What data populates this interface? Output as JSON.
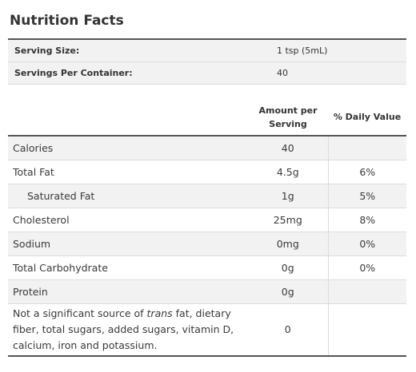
{
  "title": "Nutrition Facts",
  "serving": [
    {
      "label": "Serving Size:",
      "value": "1 tsp (5mL)"
    },
    {
      "label": "Servings Per Container:",
      "value": "40"
    }
  ],
  "headers": {
    "amount_line1": "Amount per",
    "amount_line2": "Serving",
    "daily_value": "% Daily Value"
  },
  "nutrients": [
    {
      "name": "Calories",
      "amount": "40",
      "dv": ""
    },
    {
      "name": "Total Fat",
      "amount": "4.5g",
      "dv": "6%"
    },
    {
      "name": "Saturated Fat",
      "amount": "1g",
      "dv": "5%"
    },
    {
      "name": "Cholesterol",
      "amount": "25mg",
      "dv": "8%"
    },
    {
      "name": "Sodium",
      "amount": "0mg",
      "dv": "0%"
    },
    {
      "name": "Total Carbohydrate",
      "amount": "0g",
      "dv": "0%"
    },
    {
      "name": "Protein",
      "amount": "0g",
      "dv": ""
    }
  ],
  "footnote": {
    "text_before": "Not a significant source of ",
    "text_italic": "trans",
    "text_after": " fat, dietary fiber, total sugars, added sugars, vitamin D, calcium, iron and potassium.",
    "amount": "0",
    "dv": ""
  }
}
